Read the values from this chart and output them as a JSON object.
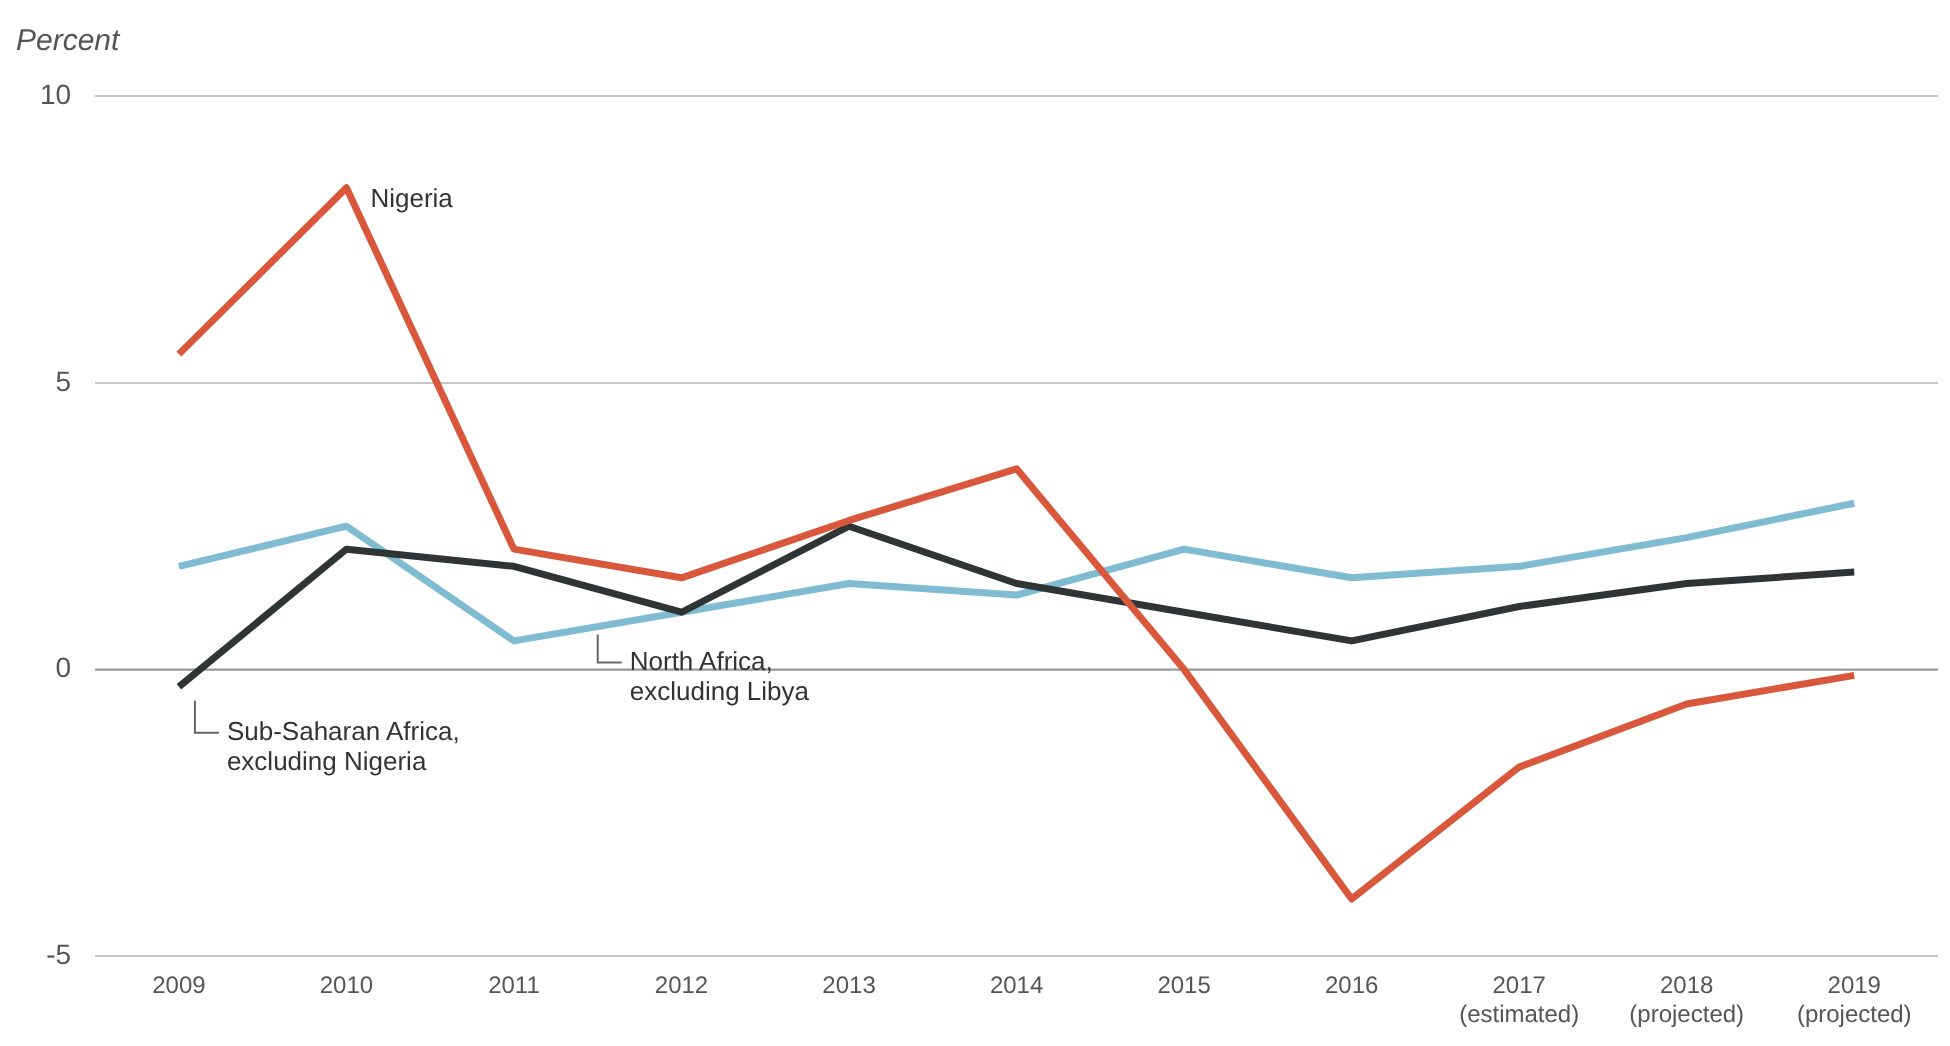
{
  "chart_data": {
    "type": "line",
    "ylabel": "Percent",
    "categories": [
      "2009",
      "2010",
      "2011",
      "2012",
      "2013",
      "2014",
      "2015",
      "2016",
      "2017\n(estimated)",
      "2018\n(projected)",
      "2019\n(projected)"
    ],
    "series": [
      {
        "name": "Nigeria",
        "color": "#d9573a",
        "values": [
          5.5,
          8.4,
          2.1,
          1.6,
          2.6,
          3.5,
          0,
          -4.0,
          -1.7,
          -0.6,
          -0.1
        ]
      },
      {
        "name": "Sub-Saharan Africa,\nexcluding Nigeria",
        "color": "#2f3535",
        "values": [
          -0.3,
          2.1,
          1.8,
          1.0,
          2.5,
          1.5,
          1.0,
          0.5,
          1.1,
          1.5,
          1.7
        ]
      },
      {
        "name": "North Africa,\nexcluding Libya",
        "color": "#7fbcd2",
        "values": [
          1.8,
          2.5,
          0.5,
          1.0,
          1.5,
          1.3,
          2.1,
          1.6,
          1.8,
          2.3,
          2.9
        ]
      }
    ],
    "ref_lines": [
      {
        "axis": "y",
        "value": 0,
        "color": "#999999",
        "line_style": "solid"
      }
    ],
    "ylim": [
      -5,
      10
    ],
    "yticks": [
      -5,
      0,
      5,
      10
    ],
    "grid": "y",
    "legend": false,
    "marker": "none",
    "line_style": "solid"
  }
}
